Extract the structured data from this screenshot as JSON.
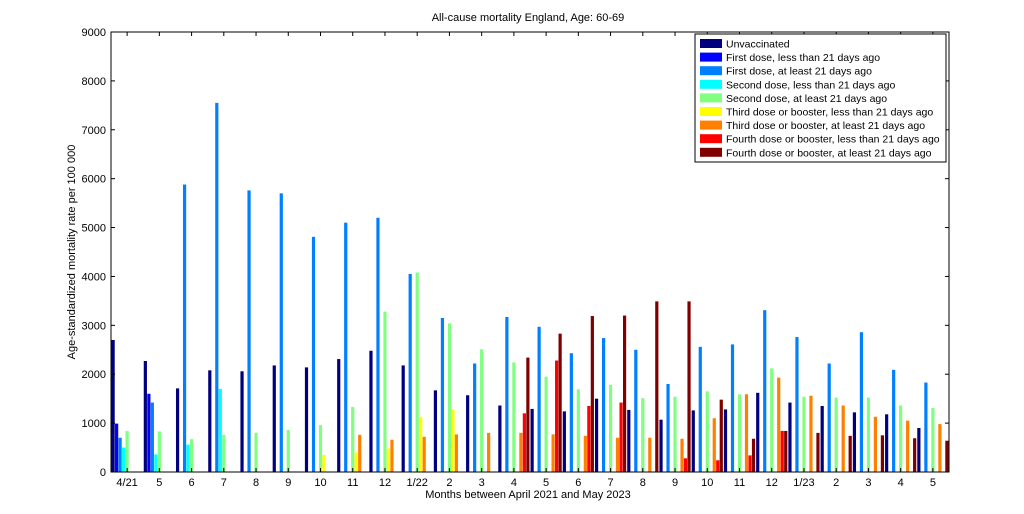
{
  "chart_data": {
    "type": "bar",
    "title": "All-cause mortality England, Age: 60-69",
    "xlabel": "Months between April 2021 and May 2023",
    "ylabel": "Age-standardized mortality rate per 100 000",
    "ylim": [
      0,
      9000
    ],
    "yticks": [
      0,
      1000,
      2000,
      3000,
      4000,
      5000,
      6000,
      7000,
      8000,
      9000
    ],
    "grid": false,
    "legend_position": "top-right",
    "categories": [
      "4/21",
      "5",
      "6",
      "7",
      "8",
      "9",
      "10",
      "11",
      "12",
      "1/22",
      "2",
      "3",
      "4",
      "5",
      "6",
      "7",
      "8",
      "9",
      "10",
      "11",
      "12",
      "1/23",
      "2",
      "3",
      "4",
      "5"
    ],
    "series": [
      {
        "name": "Unvaccinated",
        "color": "#00007f",
        "values": [
          2700,
          2270,
          1710,
          2080,
          2060,
          2180,
          2140,
          2310,
          2480,
          2180,
          1670,
          1570,
          1360,
          1290,
          1240,
          1500,
          1270,
          1070,
          1260,
          1280,
          1620,
          1420,
          1350,
          1220,
          1180,
          900
        ]
      },
      {
        "name": "First dose, less than 21 days ago",
        "color": "#0000ff",
        "values": [
          990,
          1600,
          null,
          null,
          null,
          null,
          null,
          null,
          null,
          null,
          null,
          null,
          null,
          null,
          null,
          null,
          null,
          null,
          null,
          null,
          null,
          null,
          null,
          null,
          null,
          null
        ]
      },
      {
        "name": "First dose, at least 21 days ago",
        "color": "#0080ff",
        "values": [
          700,
          1420,
          5880,
          7550,
          5760,
          5700,
          4810,
          5100,
          5200,
          4050,
          3150,
          2220,
          3170,
          2970,
          2430,
          2740,
          2500,
          1800,
          2560,
          2610,
          3310,
          2760,
          2220,
          2860,
          2090,
          1830
        ]
      },
      {
        "name": "Second dose, less than 21 days ago",
        "color": "#00ffff",
        "values": [
          500,
          360,
          560,
          1700,
          null,
          null,
          null,
          null,
          null,
          null,
          null,
          null,
          null,
          null,
          null,
          null,
          null,
          null,
          null,
          null,
          null,
          null,
          null,
          null,
          null,
          null
        ]
      },
      {
        "name": "Second dose, at least 21 days ago",
        "color": "#80ff80",
        "values": [
          840,
          830,
          670,
          760,
          800,
          860,
          960,
          1330,
          3280,
          4080,
          3040,
          2510,
          2240,
          1950,
          1690,
          1780,
          1510,
          1540,
          1650,
          1590,
          2120,
          1540,
          1520,
          1520,
          1360,
          1310
        ]
      },
      {
        "name": "Third dose or booster, less than 21 days ago",
        "color": "#ffff00",
        "values": [
          null,
          null,
          null,
          null,
          null,
          null,
          350,
          400,
          480,
          1130,
          1280,
          null,
          null,
          null,
          null,
          null,
          null,
          null,
          null,
          null,
          null,
          null,
          null,
          null,
          null,
          null
        ]
      },
      {
        "name": "Third dose or booster, at least 21 days ago",
        "color": "#ff8000",
        "values": [
          null,
          null,
          null,
          null,
          null,
          null,
          null,
          760,
          660,
          720,
          770,
          800,
          800,
          770,
          740,
          700,
          700,
          680,
          1100,
          1590,
          1930,
          1560,
          1360,
          1130,
          1050,
          980
        ]
      },
      {
        "name": "Fourth dose or booster, less than 21 days ago",
        "color": "#ff0000",
        "values": [
          null,
          null,
          null,
          null,
          null,
          null,
          null,
          null,
          null,
          null,
          null,
          null,
          1200,
          2280,
          1350,
          1420,
          null,
          280,
          240,
          340,
          840,
          null,
          null,
          null,
          null,
          null
        ]
      },
      {
        "name": "Fourth dose or booster, at least 21 days ago",
        "color": "#800000",
        "values": [
          null,
          null,
          null,
          null,
          null,
          null,
          null,
          null,
          null,
          null,
          null,
          null,
          2340,
          2830,
          3190,
          3200,
          3490,
          3490,
          1480,
          680,
          840,
          800,
          740,
          750,
          690,
          640
        ]
      }
    ]
  }
}
